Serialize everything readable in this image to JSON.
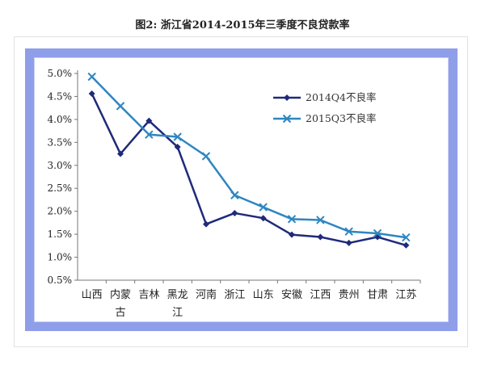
{
  "figure_title": "图2: 浙江省2014-2015年三季度不良贷款率",
  "chart_data": {
    "type": "line",
    "title": "图2: 浙江省2014-2015年三季度不良贷款率",
    "xlabel": "",
    "ylabel": "",
    "categories": [
      "山西",
      "内蒙古",
      "吉林",
      "黑龙江",
      "河南",
      "浙江",
      "山东",
      "安徽",
      "江西",
      "贵州",
      "甘肃",
      "江苏"
    ],
    "ylim": [
      0.5,
      5.0
    ],
    "yticks": [
      "0.5%",
      "1.0%",
      "1.5%",
      "2.0%",
      "2.5%",
      "3.0%",
      "3.5%",
      "4.0%",
      "4.5%",
      "5.0%"
    ],
    "grid": false,
    "legend_position": "top-right",
    "series": [
      {
        "name": "2014Q4不良率",
        "marker": "diamond",
        "color": "#1f2a7a",
        "values": [
          4.56,
          3.25,
          3.97,
          3.4,
          1.72,
          1.96,
          1.85,
          1.49,
          1.44,
          1.31,
          1.44,
          1.26
        ]
      },
      {
        "name": "2015Q3不良率",
        "marker": "x",
        "color": "#2e86c1",
        "values": [
          4.93,
          4.29,
          3.67,
          3.62,
          3.2,
          2.35,
          2.09,
          1.83,
          1.81,
          1.56,
          1.52,
          1.43
        ]
      }
    ]
  }
}
